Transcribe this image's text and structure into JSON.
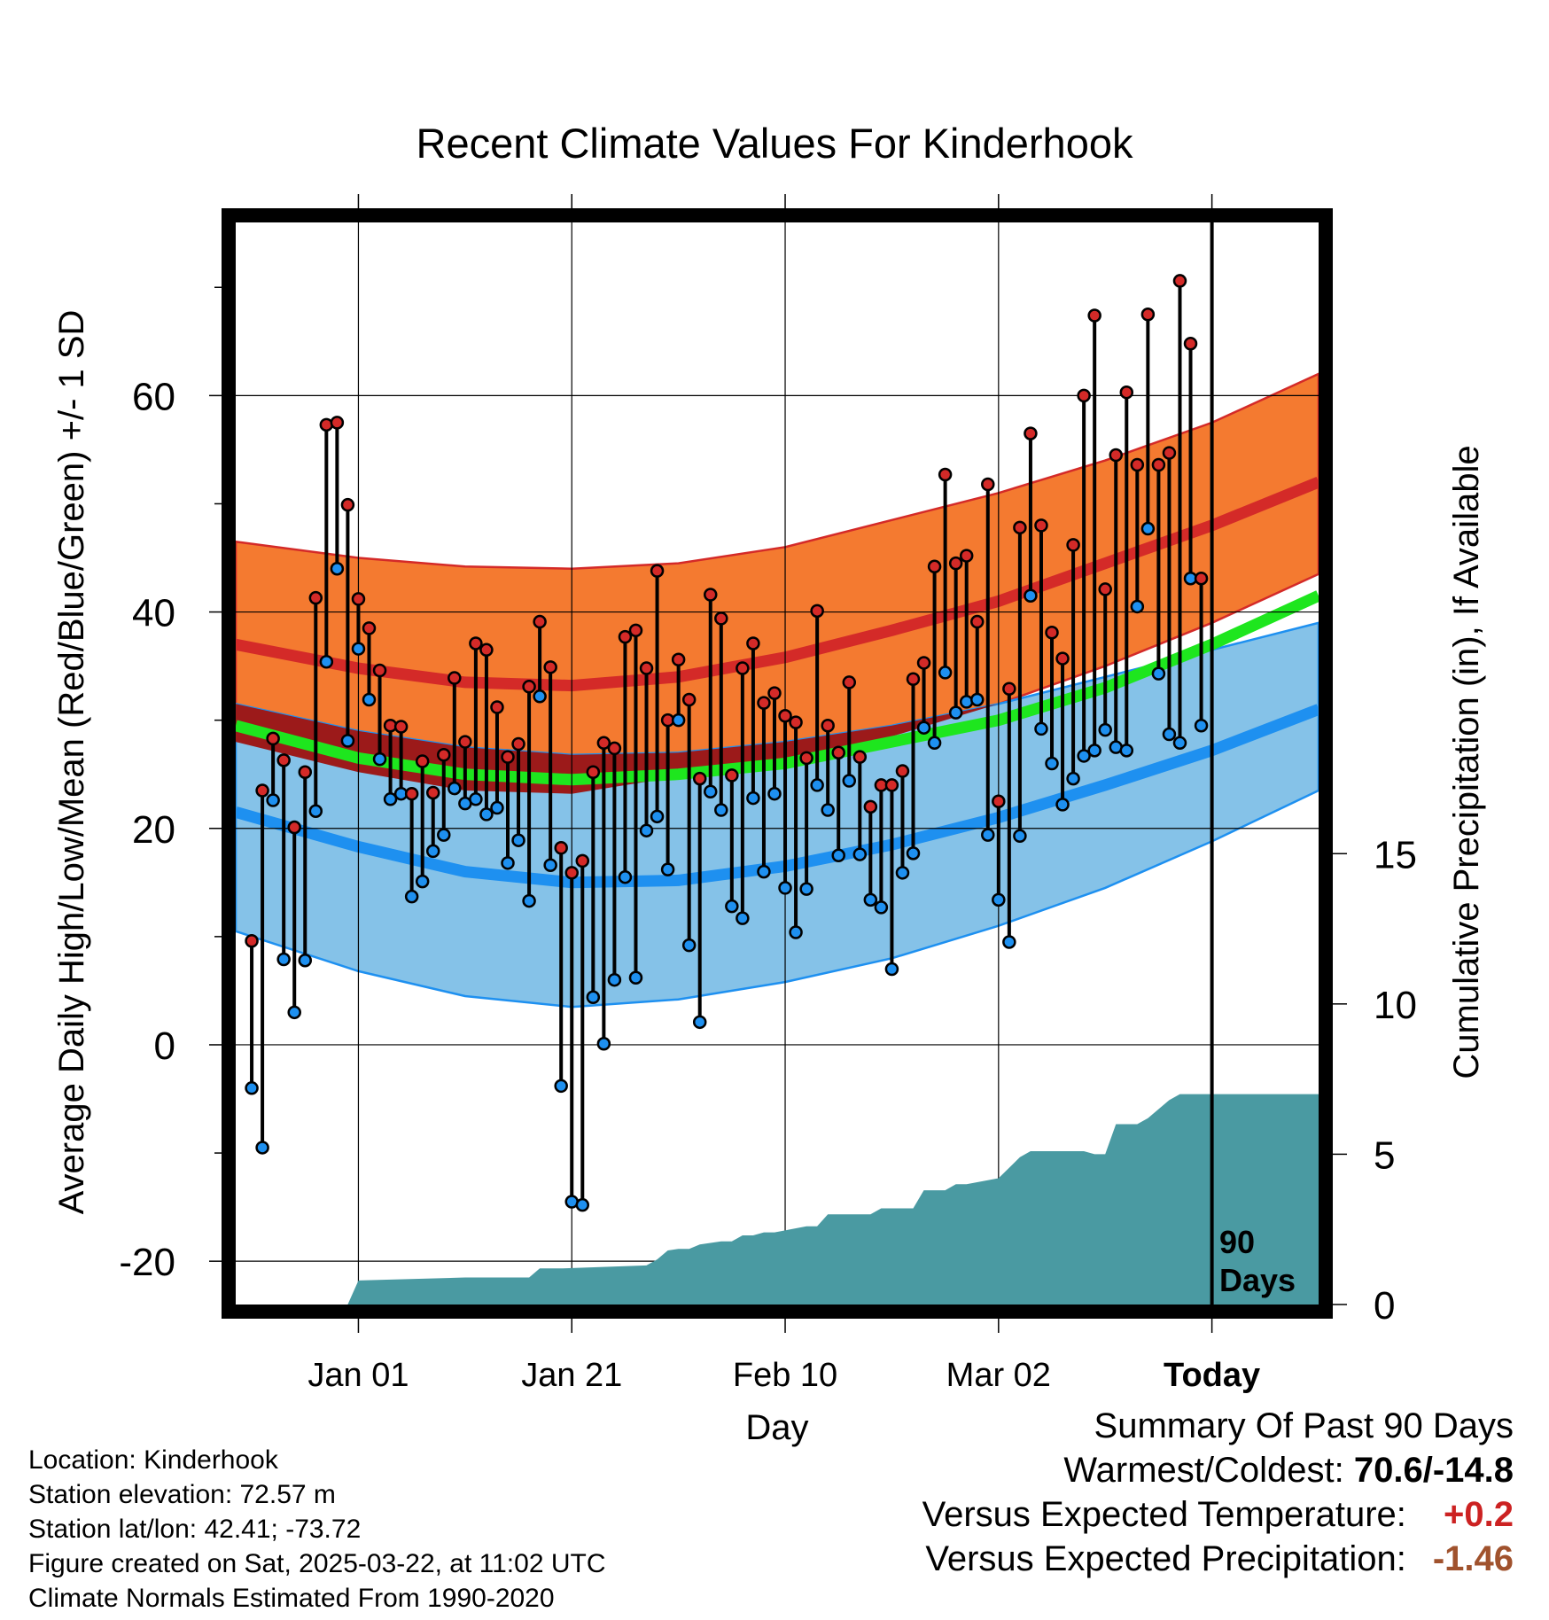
{
  "chart_data": {
    "type": "line",
    "title": "Recent Climate Values For Kinderhook",
    "xlabel": "Day",
    "ylabel_left": "Average Daily High/Low/Mean (Red/Blue/Green) +/- 1 SD",
    "ylabel_right": "Cumulative Precipitation (in), If Available",
    "xlim": [
      -11.5,
      90
    ],
    "ylim": [
      -24,
      76
    ],
    "ylim_right": [
      0,
      36
    ],
    "x_ticks": [
      {
        "x": 0,
        "label": "Jan 01"
      },
      {
        "x": 20,
        "label": "Jan 21"
      },
      {
        "x": 40,
        "label": "Feb 10"
      },
      {
        "x": 60,
        "label": "Mar 02"
      },
      {
        "x": 80,
        "label": "Today"
      }
    ],
    "y_ticks": [
      {
        "y": -20,
        "label": "-20"
      },
      {
        "y": 0,
        "label": "0"
      },
      {
        "y": 20,
        "label": "20"
      },
      {
        "y": 40,
        "label": "40"
      },
      {
        "y": 60,
        "label": "60"
      }
    ],
    "y_ticks_right": [
      {
        "y": 0,
        "label": "0"
      },
      {
        "y": 5,
        "label": "5"
      },
      {
        "y": 10,
        "label": "10"
      },
      {
        "y": 15,
        "label": "15"
      }
    ],
    "today_x": 80,
    "today_label_line1": "90",
    "today_label_line2": "Days",
    "normal_x": [
      -11.5,
      0,
      10,
      20,
      30,
      40,
      50,
      60,
      70,
      80,
      90
    ],
    "normal_high": [
      37.0,
      34.8,
      33.5,
      33.2,
      34.0,
      35.8,
      38.3,
      41.0,
      44.5,
      48.0,
      52.0
    ],
    "normal_high_upper": [
      46.5,
      45.0,
      44.2,
      44.0,
      44.5,
      46.0,
      48.5,
      51.0,
      54.0,
      57.5,
      62.0
    ],
    "normal_high_lower": [
      28.0,
      25.2,
      23.5,
      23.2,
      24.8,
      26.5,
      28.5,
      31.5,
      35.0,
      39.0,
      43.5
    ],
    "normal_mean": [
      29.5,
      26.5,
      25.0,
      24.5,
      25.0,
      26.0,
      28.0,
      30.0,
      33.0,
      37.0,
      41.5
    ],
    "normal_low": [
      21.5,
      18.3,
      16.0,
      15.0,
      15.2,
      16.5,
      18.5,
      21.0,
      24.0,
      27.2,
      31.0
    ],
    "normal_low_upper": [
      31.5,
      29.0,
      27.5,
      26.8,
      27.0,
      28.0,
      29.5,
      31.5,
      34.0,
      36.5,
      39.0
    ],
    "normal_low_lower": [
      10.5,
      6.8,
      4.5,
      3.5,
      4.2,
      5.8,
      8.0,
      11.0,
      14.5,
      18.8,
      23.5
    ],
    "daily_x": [
      -10,
      -9,
      -8,
      -7,
      -6,
      -5,
      -4,
      -3,
      -2,
      -1,
      0,
      1,
      2,
      3,
      4,
      5,
      6,
      7,
      8,
      9,
      10,
      11,
      12,
      13,
      14,
      15,
      16,
      17,
      18,
      19,
      20,
      21,
      22,
      23,
      24,
      25,
      26,
      27,
      28,
      29,
      30,
      31,
      32,
      33,
      34,
      35,
      36,
      37,
      38,
      39,
      40,
      41,
      42,
      43,
      44,
      45,
      46,
      47,
      48,
      49,
      50,
      51,
      52,
      53,
      54,
      55,
      56,
      57,
      58,
      59,
      60,
      61,
      62,
      63,
      64,
      65,
      66,
      67,
      68,
      69,
      70,
      71,
      72,
      73,
      74,
      75,
      76,
      77,
      78,
      79
    ],
    "daily_high": [
      9.6,
      23.5,
      28.3,
      26.3,
      20.1,
      25.2,
      41.3,
      57.3,
      57.5,
      49.9,
      41.2,
      38.5,
      34.6,
      29.5,
      29.4,
      23.2,
      26.2,
      23.3,
      26.8,
      33.9,
      28.0,
      37.1,
      36.5,
      31.2,
      26.6,
      27.8,
      33.1,
      39.1,
      34.9,
      18.2,
      15.9,
      17.0,
      25.2,
      27.9,
      27.4,
      37.7,
      38.3,
      34.8,
      43.8,
      30.0,
      35.6,
      31.9,
      24.6,
      41.6,
      39.4,
      24.9,
      34.8,
      37.1,
      31.6,
      32.5,
      30.4,
      29.8,
      26.5,
      40.1,
      29.5,
      27.0,
      33.5,
      26.6,
      22.0,
      24.0,
      24.0,
      25.3,
      33.8,
      35.3,
      44.2,
      52.7,
      44.5,
      45.2,
      39.1,
      51.8,
      22.5,
      32.9,
      47.8,
      56.5,
      48.0,
      38.1,
      35.7,
      46.2,
      60.0,
      67.4,
      42.1,
      54.5,
      60.3,
      53.6,
      67.5,
      53.6,
      54.7,
      70.6,
      64.8,
      43.1
    ],
    "daily_low": [
      -4.0,
      -9.5,
      22.6,
      7.9,
      3.0,
      7.8,
      21.6,
      35.4,
      44.0,
      28.1,
      36.6,
      31.9,
      26.4,
      22.7,
      23.2,
      13.7,
      15.1,
      17.9,
      19.4,
      23.7,
      22.3,
      22.7,
      21.3,
      21.9,
      16.8,
      18.9,
      13.3,
      32.2,
      16.6,
      -3.8,
      -14.5,
      -14.8,
      4.4,
      0.1,
      6.0,
      15.5,
      6.2,
      19.8,
      21.1,
      16.2,
      30.0,
      9.2,
      2.1,
      23.4,
      21.7,
      12.8,
      11.7,
      22.8,
      16.0,
      23.2,
      14.5,
      10.4,
      14.4,
      24.0,
      21.7,
      17.5,
      24.4,
      17.6,
      13.4,
      12.7,
      7.0,
      15.9,
      17.7,
      29.3,
      27.9,
      34.4,
      30.7,
      31.7,
      31.9,
      19.4,
      13.4,
      9.5,
      19.3,
      41.5,
      29.2,
      26.0,
      22.2,
      24.6,
      26.7,
      27.2,
      29.1,
      27.5,
      27.2,
      40.5,
      47.7,
      34.3,
      28.7,
      27.9,
      43.1,
      29.5
    ],
    "precip_x": [
      -11.5,
      -1,
      0,
      10,
      16,
      17,
      19,
      27,
      28,
      29,
      30,
      31,
      32,
      34,
      35,
      36,
      37,
      38,
      39,
      42,
      43,
      44,
      46,
      48,
      49,
      50,
      52,
      53,
      54,
      55,
      56,
      57,
      60,
      62,
      63,
      68,
      69,
      70,
      71,
      73,
      74,
      76,
      77,
      90
    ],
    "precip_cum": [
      0,
      0,
      0.8,
      0.9,
      0.9,
      1.2,
      1.2,
      1.3,
      1.5,
      1.8,
      1.85,
      1.85,
      2.0,
      2.1,
      2.1,
      2.3,
      2.3,
      2.4,
      2.4,
      2.6,
      2.6,
      3.0,
      3.0,
      3.0,
      3.2,
      3.2,
      3.2,
      3.8,
      3.8,
      3.8,
      4.0,
      4.0,
      4.2,
      4.9,
      5.1,
      5.1,
      5.0,
      5.0,
      6.0,
      6.0,
      6.2,
      6.8,
      7.0,
      7.0
    ]
  },
  "meta": {
    "location": "Location: Kinderhook",
    "elevation": "Station elevation: 72.57 m",
    "latlon": "Station lat/lon: 42.41; -73.72",
    "created": "Figure created on Sat, 2025-03-22, at 11:02 UTC",
    "normals": "Climate Normals Estimated From 1990-2020"
  },
  "summary": {
    "heading": "Summary Of Past 90 Days",
    "extremes_label": "Warmest/Coldest:",
    "extremes_value": "70.6/-14.8",
    "temp_label": "Versus Expected Temperature:",
    "temp_value": "+0.2",
    "precip_label": "Versus Expected Precipitation:",
    "precip_value": "-1.46"
  },
  "colors": {
    "high_band": "#f47a30",
    "high_line": "#d42a28",
    "high_overlap": "#9c1a1a",
    "mean_line": "#1ee61e",
    "low_band": "#85c2e8",
    "low_line": "#1e90f0",
    "precip_fill": "#4a9aa2",
    "high_dot": "#d42a28",
    "low_dot": "#1e90f0"
  }
}
